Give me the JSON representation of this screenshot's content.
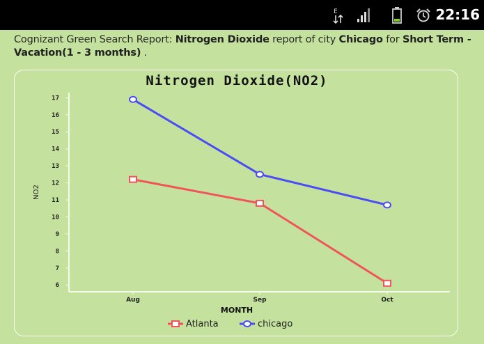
{
  "status_bar": {
    "time": "22:16",
    "icons": [
      "data-transfer-icon",
      "signal-icon",
      "battery-icon",
      "alarm-icon"
    ]
  },
  "report": {
    "prefix": "Cognizant Green Search Report: ",
    "pollutant": "Nitrogen Dioxide",
    "mid1": " report of city ",
    "city": "Chicago",
    "mid2": " for ",
    "period": "Short Term - Vacation(1 - 3 months)",
    "suffix": " ."
  },
  "chart_data": {
    "type": "line",
    "title": "Nitrogen Dioxide(NO2)",
    "xlabel": "MONTH",
    "ylabel": "NO2",
    "categories": [
      "Aug",
      "Sep",
      "Oct"
    ],
    "ylim": [
      5.6,
      17.3
    ],
    "yticks": [
      "17",
      "16",
      "15",
      "14",
      "13",
      "12",
      "11",
      "10",
      "9",
      "8",
      "7",
      "6"
    ],
    "grid": false,
    "legend_position": "bottom",
    "series": [
      {
        "name": "Atlanta",
        "values": [
          12.2,
          10.8,
          6.1
        ],
        "color": "#f0545a",
        "marker": "square"
      },
      {
        "name": "chicago",
        "values": [
          16.9,
          12.5,
          10.7
        ],
        "color": "#4a4cf5",
        "marker": "circle"
      }
    ]
  }
}
